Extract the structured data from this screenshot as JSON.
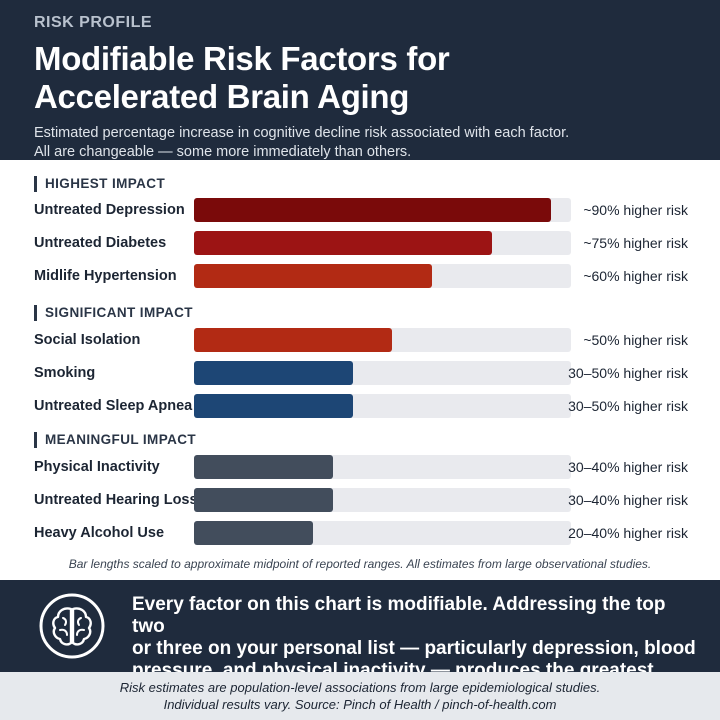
{
  "header": {
    "eyebrow": "RISK PROFILE",
    "title_line1": "Modifiable Risk Factors for",
    "title_line2": "Accelerated Brain Aging",
    "subtitle_line1": "Estimated percentage increase in cognitive decline risk associated with each factor.",
    "subtitle_line2": "All are changeable — some more immediately than others."
  },
  "chart_data": {
    "type": "bar",
    "orientation": "horizontal",
    "xlim": [
      0,
      95
    ],
    "sections": [
      {
        "title": "HIGHEST IMPACT",
        "rows": [
          {
            "label": "Untreated Depression",
            "value": 90,
            "value_label": "~90% higher risk",
            "color": "#7a0a0a"
          },
          {
            "label": "Untreated Diabetes",
            "value": 75,
            "value_label": "~75% higher risk",
            "color": "#9c1414"
          },
          {
            "label": "Midlife Hypertension",
            "value": 60,
            "value_label": "~60% higher risk",
            "color": "#b22a14"
          }
        ]
      },
      {
        "title": "SIGNIFICANT IMPACT",
        "rows": [
          {
            "label": "Social Isolation",
            "value": 50,
            "value_label": "~50% higher risk",
            "color": "#b22a14"
          },
          {
            "label": "Smoking",
            "value": 40,
            "value_label": "30–50% higher risk",
            "color": "#1d4675"
          },
          {
            "label": "Untreated Sleep Apnea",
            "value": 40,
            "value_label": "30–50% higher risk",
            "color": "#1d4675"
          }
        ]
      },
      {
        "title": "MEANINGFUL IMPACT",
        "rows": [
          {
            "label": "Physical Inactivity",
            "value": 35,
            "value_label": "30–40% higher risk",
            "color": "#424d5c"
          },
          {
            "label": "Untreated Hearing Loss",
            "value": 35,
            "value_label": "30–40% higher risk",
            "color": "#424d5c"
          },
          {
            "label": "Heavy Alcohol Use",
            "value": 30,
            "value_label": "20–40% higher risk",
            "color": "#424d5c"
          }
        ]
      }
    ],
    "footnote": "Bar lengths scaled to approximate midpoint of reported ranges. All estimates from large observational studies."
  },
  "callout": {
    "icon": "brain-icon",
    "line1": "Every factor on this chart is modifiable. Addressing the top two",
    "line2": "or three on your personal list — particularly depression, blood",
    "line3": "pressure, and physical inactivity — produces the greatest return."
  },
  "footer": {
    "line1": "Risk estimates are population-level associations from large epidemiological studies.",
    "line2": "Individual results vary.  Source: Pinch of Health / pinch-of-health.com"
  }
}
